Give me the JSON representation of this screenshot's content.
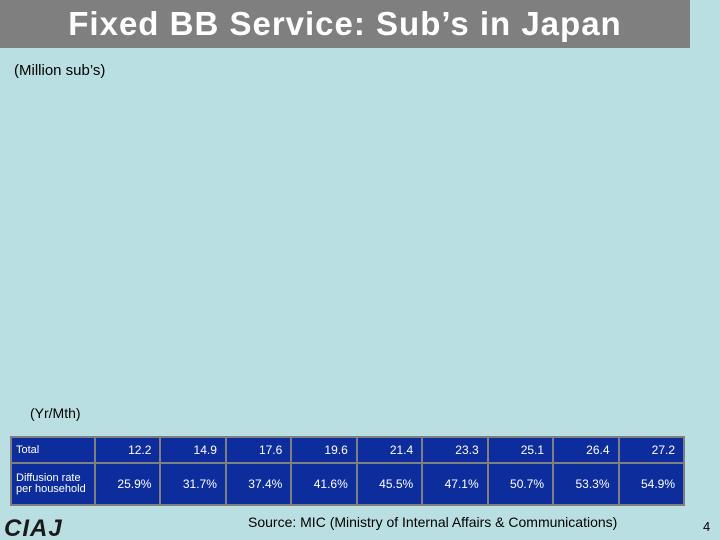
{
  "title": "Fixed BB Service: Sub’s in Japan",
  "chart_data": {
    "type": "table",
    "ylabel": "(Million sub’s)",
    "xlabel": "(Yr/Mth)",
    "rows": [
      {
        "label": "Total",
        "values": [
          "12.2",
          "14.9",
          "17.6",
          "19.6",
          "21.4",
          "23.3",
          "25.1",
          "26.4",
          "27.2"
        ]
      },
      {
        "label": "Diffusion rate per household",
        "values": [
          "25.9%",
          "31.7%",
          "37.4%",
          "41.6%",
          "45.5%",
          "47.1%",
          "50.7%",
          "53.3%",
          "54.9%"
        ]
      }
    ]
  },
  "footer": {
    "source": "Source: MIC (Ministry of Internal Affairs & Communications)",
    "page_number": "4",
    "logo_text": "CIAJ"
  },
  "colors": {
    "background": "#badfe3",
    "title_bar": "#7f7f7f",
    "table_fill": "#0c2d9b"
  }
}
